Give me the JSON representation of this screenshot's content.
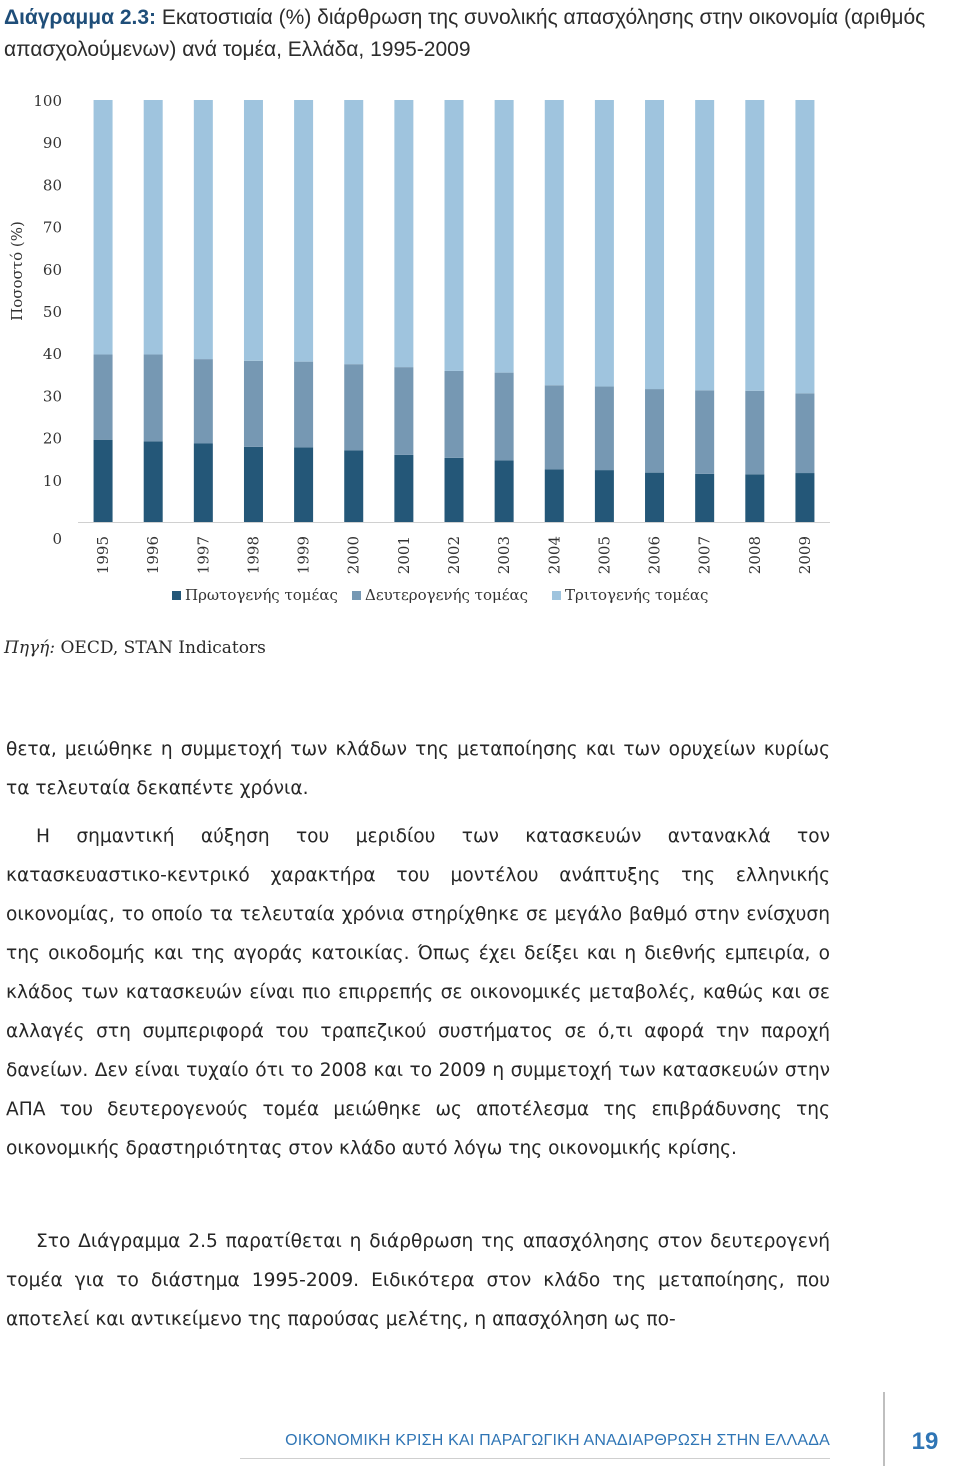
{
  "document": {
    "figure_label": "Διάγραμμα 2.3:",
    "figure_title": "Εκατοστιαία (%) διάρθρωση της συνολικής απασχόλησης στην οικονομία (αριθμός απασχολούμενων) ανά τομέα, Ελλάδα, 1995-2009",
    "source_label": "Πηγή:",
    "source_text": "OECD, STAN Indicators",
    "para1": "θετα, μειώθηκε η συμμετοχή των κλάδων της μεταποίησης και των ορυχείων κυρίως τα τελευταία δεκαπέντε χρόνια.",
    "para2": "Η σημαντική αύξηση του μεριδίου των κατασκευών αντανακλά τον κατασκευαστικο-κεντρικό χαρακτήρα του μοντέλου ανάπτυξης της ελληνικής οικονομίας, το οποίο τα τελευταία χρόνια στηρίχθηκε σε μεγάλο βαθμό στην ενίσχυση της οικοδομής και της αγοράς κατοικίας. Όπως έχει δείξει και η διεθνής εμπειρία, ο κλάδος των κατασκευών είναι πιο επιρρεπής σε οικονομικές μεταβολές, καθώς και σε αλλαγές στη συμπεριφορά του τραπεζικού συστήματος σε ό,τι αφορά την παροχή δανείων. Δεν είναι τυχαίο ότι το 2008 και το 2009 η συμμετοχή των κατασκευών στην ΑΠΑ του δευτερογενούς τομέα μειώθηκε ως αποτέλεσμα της επιβράδυνσης της οικονομικής δραστηριότητας στον κλάδο αυτό λόγω της οικονομικής κρίσης.",
    "para3": "Στο Διάγραμμα 2.5 παρατίθεται η διάρθρωση της απασχόλησης στον δευτερογενή τομέα για το διάστημα 1995-2009. Ειδικότερα στον κλάδο της μεταποίησης, που αποτελεί και αντικείμενο της παρούσας μελέτης, η απασχόληση ως πο-",
    "footer_title": "ΟΙΚΟΝΟΜΙΚΗ ΚΡΙΣΗ ΚΑΙ ΠΑΡΑΓΩΓΙΚΗ ΑΝΑΔΙΑΡΘΡΩΣΗ ΣΤΗΝ ΕΛΛΑΔΑ",
    "page_number": "19"
  },
  "chart_data": {
    "type": "bar",
    "stacked": true,
    "ylabel": "Ποσοστό (%)",
    "ylim": [
      0,
      100
    ],
    "yticks": [
      0,
      10,
      20,
      30,
      40,
      50,
      60,
      70,
      80,
      90,
      100
    ],
    "grid": false,
    "legend_position": "bottom",
    "categories": [
      "1995",
      "1996",
      "1997",
      "1998",
      "1999",
      "2000",
      "2001",
      "2002",
      "2003",
      "2004",
      "2005",
      "2006",
      "2007",
      "2008",
      "2009"
    ],
    "series": [
      {
        "name": "Πρωτογενής τομέας",
        "color": "#245778",
        "values": [
          19.5,
          19.1,
          18.6,
          17.8,
          17.7,
          17.0,
          15.9,
          15.2,
          14.6,
          12.5,
          12.3,
          11.7,
          11.4,
          11.3,
          11.6
        ]
      },
      {
        "name": "Δευτερογενής τομέας",
        "color": "#7698b3",
        "values": [
          20.2,
          20.6,
          20.0,
          20.4,
          20.3,
          20.4,
          20.8,
          20.6,
          20.8,
          19.9,
          19.8,
          19.8,
          19.8,
          19.8,
          18.9
        ]
      },
      {
        "name": "Τριτογενής τομέας",
        "color": "#9fc4de",
        "values": [
          60.3,
          60.3,
          61.4,
          61.8,
          62.0,
          62.6,
          63.3,
          64.2,
          64.6,
          67.6,
          67.9,
          68.5,
          68.8,
          68.9,
          69.5
        ]
      }
    ]
  }
}
